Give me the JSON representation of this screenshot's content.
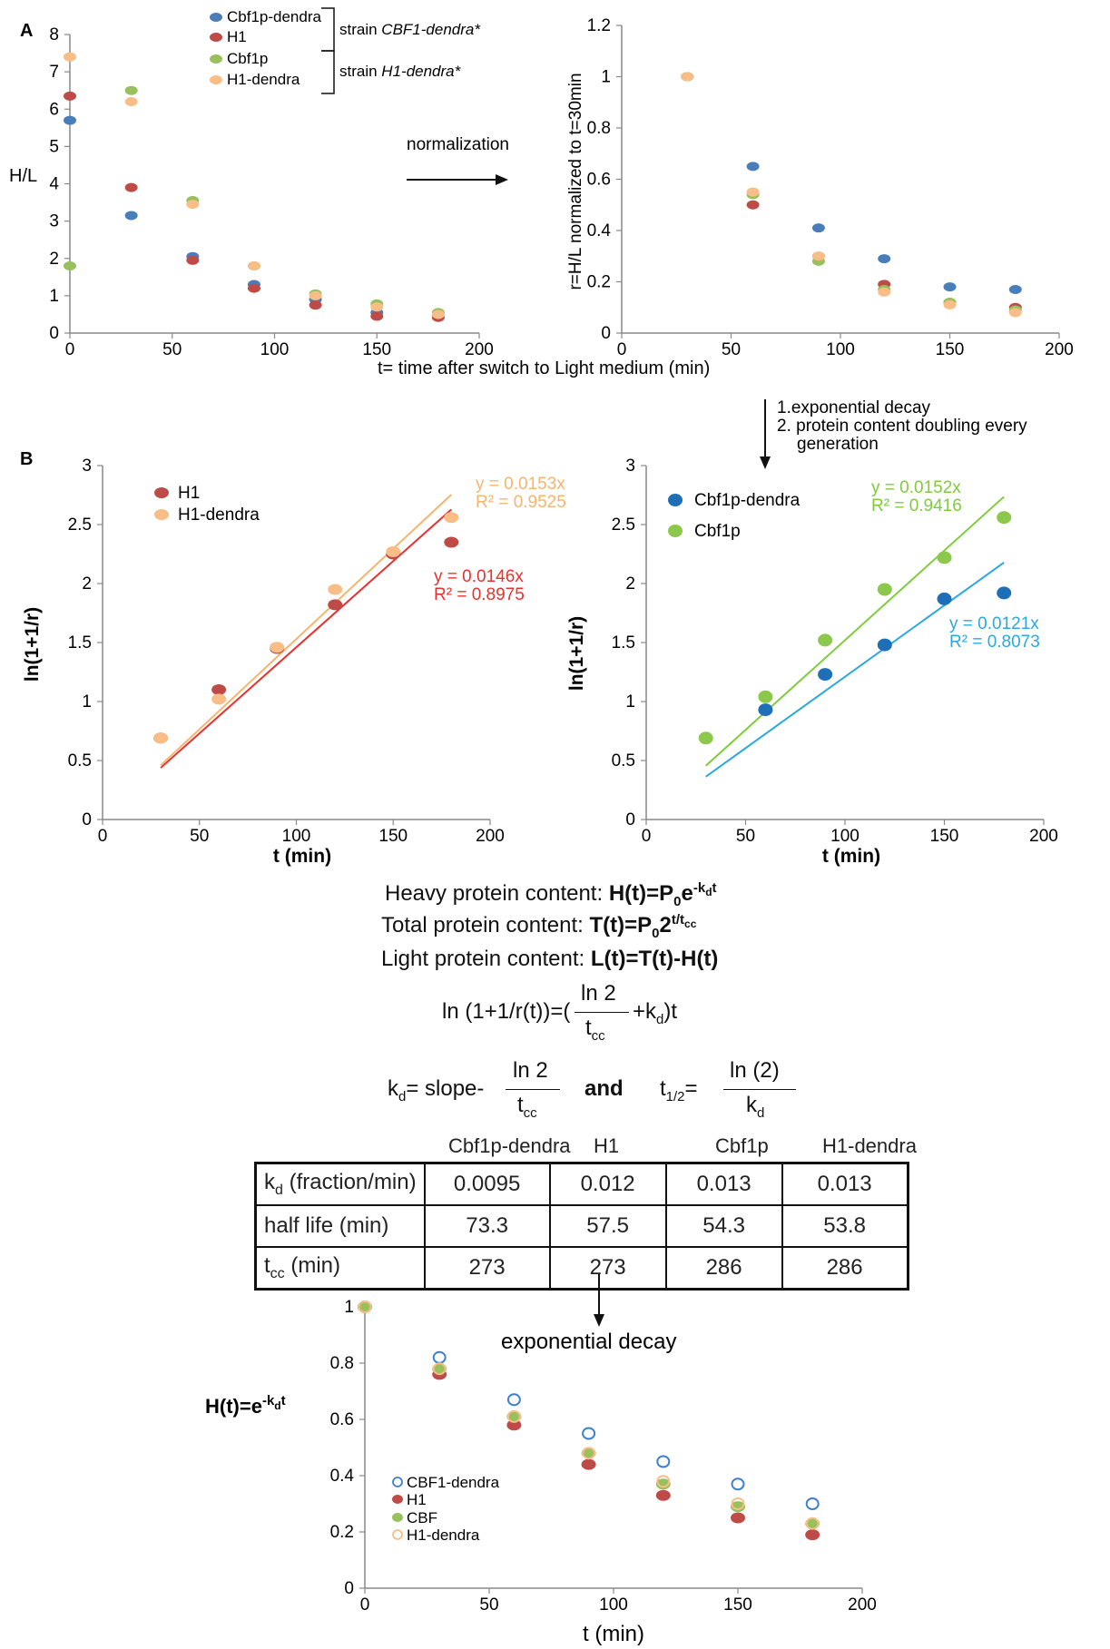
{
  "panel_labels": {
    "a": "A",
    "b": "B"
  },
  "annotations": {
    "normalization": "normalization",
    "steps": [
      "1.exponential decay",
      "2. protein content doubling every",
      "generation"
    ],
    "exp_decay": "exponential decay",
    "strain_cbf1": "strain ",
    "strain_cbf1_italic": "CBF1-dendra*",
    "strain_h1": "strain ",
    "strain_h1_italic": "H1-dendra*"
  },
  "colors": {
    "blue": "#4a7ebb",
    "red": "#be4b48",
    "green": "#98c05c",
    "orange": "#f9be87",
    "red_line": "#e8312f",
    "orange_line": "#f5b56e",
    "green_line": "#7fcc3a",
    "cyan_line": "#29a9df",
    "blue_dark": "#1f6fb8",
    "green_b": "#8cc84b",
    "hollow_blue": "#3d7fd1"
  },
  "formulas": {
    "heavy_label": "Heavy protein content: ",
    "heavy_expr": "H(t)=P0e-kdt",
    "total_label": "Total protein content: ",
    "total_expr": "T(t)=P02t/tcc",
    "light_label": "Light protein content: ",
    "light_expr": "L(t)=T(t)-H(t)",
    "ln_lhs": "ln (1+1/r(t))=(",
    "ln_num": "ln 2",
    "ln_den": "tcc",
    "ln_rhs": "+kd)t",
    "kd_lhs": "kd= slope-",
    "kd_num": "ln 2",
    "kd_den": "tcc",
    "and": "and",
    "half_lhs": "t1/2=",
    "half_num": "ln (2)",
    "half_den": "kd",
    "ht_label": "H(t)=e-kdt"
  },
  "table": {
    "columns": [
      "Cbf1p-dendra",
      "H1",
      "Cbf1p",
      "H1-dendra"
    ],
    "rows": [
      {
        "label": "kd (fraction/min)",
        "values": [
          "0.0095",
          "0.012",
          "0.013",
          "0.013"
        ]
      },
      {
        "label": "half life (min)",
        "values": [
          "73.3",
          "57.5",
          "54.3",
          "53.8"
        ]
      },
      {
        "label": "tcc (min)",
        "values": [
          "273",
          "273",
          "286",
          "286"
        ]
      }
    ]
  },
  "chart_data": [
    {
      "id": "A-left",
      "type": "scatter",
      "ylabel": "H/L",
      "xlabel": "t= time after switch to Light medium (min)",
      "xlim": [
        0,
        200
      ],
      "ylim": [
        0,
        8
      ],
      "xticks": [
        0,
        50,
        100,
        150,
        200
      ],
      "yticks": [
        0,
        1,
        2,
        3,
        4,
        5,
        6,
        7,
        8
      ],
      "legend_placement": "top",
      "series": [
        {
          "name": "Cbf1p-dendra",
          "color": "blue",
          "x": [
            0,
            30,
            60,
            90,
            120,
            150,
            180
          ],
          "y": [
            5.7,
            3.15,
            2.05,
            1.3,
            0.9,
            0.55,
            0.5
          ]
        },
        {
          "name": "H1",
          "color": "red",
          "x": [
            0,
            30,
            60,
            90,
            120,
            150,
            180
          ],
          "y": [
            6.35,
            3.9,
            1.95,
            1.2,
            0.75,
            0.45,
            0.42
          ]
        },
        {
          "name": "Cbf1p",
          "color": "green",
          "x": [
            0,
            30,
            60,
            90,
            120,
            150,
            180
          ],
          "y": [
            1.8,
            6.5,
            3.55,
            1.8,
            1.05,
            0.78,
            0.55
          ]
        },
        {
          "name": "H1-dendra",
          "color": "orange",
          "x": [
            0,
            30,
            60,
            90,
            120,
            150,
            180
          ],
          "y": [
            7.4,
            6.2,
            3.45,
            1.8,
            1.0,
            0.7,
            0.5
          ]
        }
      ]
    },
    {
      "id": "A-right",
      "type": "scatter",
      "ylabel": "r=H/L normalized  to t=30min",
      "xlim": [
        0,
        200
      ],
      "ylim": [
        0,
        1.2
      ],
      "xticks": [
        0,
        50,
        100,
        150,
        200
      ],
      "yticks": [
        0,
        0.2,
        0.4,
        0.6,
        0.8,
        1,
        1.2
      ],
      "series": [
        {
          "color": "blue",
          "x": [
            30,
            60,
            90,
            120,
            150,
            180
          ],
          "y": [
            1.0,
            0.65,
            0.41,
            0.29,
            0.18,
            0.17
          ]
        },
        {
          "color": "red",
          "x": [
            30,
            60,
            90,
            120,
            150,
            180
          ],
          "y": [
            1.0,
            0.5,
            0.3,
            0.19,
            0.12,
            0.1
          ]
        },
        {
          "color": "green",
          "x": [
            30,
            60,
            90,
            120,
            150,
            180
          ],
          "y": [
            1.0,
            0.54,
            0.28,
            0.17,
            0.12,
            0.09
          ]
        },
        {
          "color": "orange",
          "x": [
            30,
            60,
            90,
            120,
            150,
            180
          ],
          "y": [
            1.0,
            0.55,
            0.3,
            0.16,
            0.11,
            0.08
          ]
        }
      ]
    },
    {
      "id": "B-left",
      "type": "scatter",
      "ylabel": "ln(1+1/r)",
      "xlabel": "t (min)",
      "xlim": [
        0,
        200
      ],
      "ylim": [
        0,
        3
      ],
      "xticks": [
        0,
        50,
        100,
        150,
        200
      ],
      "yticks": [
        0,
        0.5,
        1,
        1.5,
        2,
        2.5,
        3
      ],
      "legend_placement": "top-left",
      "series": [
        {
          "name": "H1",
          "color": "red",
          "x": [
            30,
            60,
            90,
            120,
            150,
            180
          ],
          "y": [
            0.69,
            1.1,
            1.45,
            1.82,
            2.25,
            2.35
          ]
        },
        {
          "name": "H1-dendra",
          "color": "orange",
          "x": [
            30,
            60,
            90,
            120,
            150,
            180
          ],
          "y": [
            0.69,
            1.02,
            1.46,
            1.95,
            2.27,
            2.56
          ]
        }
      ],
      "trendlines": [
        {
          "color": "orange_line",
          "slope": 0.0153,
          "x": [
            30,
            180
          ],
          "equation": "y = 0.0153x",
          "r2": "R² = 0.9525"
        },
        {
          "color": "red_line",
          "slope": 0.0146,
          "x": [
            30,
            180
          ],
          "equation": "y = 0.0146x",
          "r2": "R² = 0.8975"
        }
      ]
    },
    {
      "id": "B-right",
      "type": "scatter",
      "ylabel": "ln(1+1/r)",
      "xlabel": "t (min)",
      "xlim": [
        0,
        200
      ],
      "ylim": [
        0,
        3
      ],
      "xticks": [
        0,
        50,
        100,
        150,
        200
      ],
      "yticks": [
        0,
        0.5,
        1,
        1.5,
        2,
        2.5,
        3
      ],
      "legend_placement": "top-left",
      "series": [
        {
          "name": "Cbf1p-dendra",
          "color": "blue_dark",
          "x": [
            60,
            90,
            120,
            150,
            180
          ],
          "y": [
            0.93,
            1.23,
            1.48,
            1.87,
            1.92
          ]
        },
        {
          "name": "Cbf1p",
          "color": "green_b",
          "x": [
            30,
            60,
            90,
            120,
            150,
            180
          ],
          "y": [
            0.69,
            1.04,
            1.52,
            1.95,
            2.22,
            2.56
          ]
        }
      ],
      "trendlines": [
        {
          "color": "green_line",
          "slope": 0.0152,
          "x": [
            30,
            180
          ],
          "equation": "y = 0.0152x",
          "r2": "R² = 0.9416"
        },
        {
          "color": "cyan_line",
          "slope": 0.0121,
          "x": [
            30,
            180
          ],
          "equation": "y = 0.0121x",
          "r2": "R² = 0.8073"
        }
      ]
    },
    {
      "id": "C",
      "type": "scatter",
      "xlabel": "t (min)",
      "xlim": [
        0,
        200
      ],
      "ylim": [
        0,
        1
      ],
      "xticks": [
        0,
        50,
        100,
        150,
        200
      ],
      "yticks": [
        0,
        0.2,
        0.4,
        0.6,
        0.8,
        1
      ],
      "legend_placement": "bottom-left",
      "series": [
        {
          "name": "CBF1-dendra",
          "style": "hollow",
          "color": "hollow_blue",
          "x": [
            0,
            30,
            60,
            90,
            120,
            150,
            180
          ],
          "y": [
            1.0,
            0.82,
            0.67,
            0.55,
            0.45,
            0.37,
            0.3
          ]
        },
        {
          "name": "H1",
          "style": "filled",
          "color": "red",
          "x": [
            0,
            30,
            60,
            90,
            120,
            150,
            180
          ],
          "y": [
            1.0,
            0.76,
            0.58,
            0.44,
            0.33,
            0.25,
            0.19
          ]
        },
        {
          "name": "CBF",
          "style": "filled",
          "color": "green",
          "x": [
            0,
            30,
            60,
            90,
            120,
            150,
            180
          ],
          "y": [
            1.0,
            0.78,
            0.61,
            0.48,
            0.37,
            0.29,
            0.23
          ]
        },
        {
          "name": "H1-dendra",
          "style": "hollow",
          "color": "orange",
          "x": [
            0,
            30,
            60,
            90,
            120,
            150,
            180
          ],
          "y": [
            1.0,
            0.78,
            0.61,
            0.48,
            0.38,
            0.3,
            0.23
          ]
        }
      ]
    }
  ]
}
